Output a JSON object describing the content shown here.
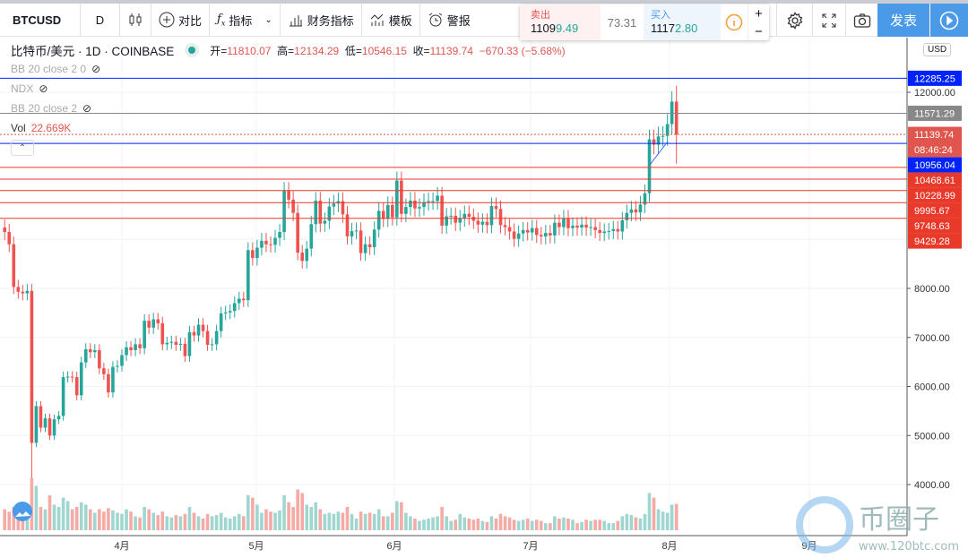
{
  "toolbar": {
    "symbol": "BTCUSD",
    "interval": "D",
    "compare": "对比",
    "indicators": "指标",
    "financials": "财务指标",
    "templates": "模板",
    "alert": "警报",
    "publish": "发表"
  },
  "trade": {
    "sell_label": "卖出",
    "sell_price_a": "1109",
    "sell_price_b": "9.49",
    "spread": "73.31",
    "buy_label": "买入",
    "buy_price_a": "1117",
    "buy_price_b": "2.80"
  },
  "legend": {
    "title": "比特币/美元 · 1D · COINBASE",
    "open_label": "开=",
    "open": "11810.07",
    "high_label": "高=",
    "high": "12134.29",
    "low_label": "低=",
    "low": "10546.15",
    "close_label": "收=",
    "close": "11139.74",
    "change": "−670.33 (−5.68%)",
    "studies": [
      "BB 20 close 2 0",
      "NDX",
      "BB 20 close 2"
    ],
    "vol_label": "Vol",
    "vol_value": "22.669K"
  },
  "axis": {
    "currency": "USD",
    "ticks": [
      "12000.00",
      "8000.00",
      "7000.00",
      "6000.00",
      "5000.00",
      "4000.00"
    ],
    "months": [
      "4月",
      "5月",
      "6月",
      "7月",
      "8月",
      "9月"
    ],
    "countdown": "08:46:24"
  },
  "price_lines": [
    {
      "value": "12285.25",
      "color": "#0022ff",
      "style": "solid"
    },
    {
      "value": "11571.29",
      "color": "#888888",
      "style": "solid"
    },
    {
      "value": "11139.74",
      "color": "#e0564f",
      "style": "dotted"
    },
    {
      "value": "10956.04",
      "color": "#0022ff",
      "style": "solid"
    },
    {
      "value": "10468.61",
      "color": "#e8392b",
      "style": "solid"
    },
    {
      "value": "10228.99",
      "color": "#e8392b",
      "style": "solid"
    },
    {
      "value": "9995.67",
      "color": "#e8392b",
      "style": "solid"
    },
    {
      "value": "9748.63",
      "color": "#e8392b",
      "style": "solid"
    },
    {
      "value": "9429.28",
      "color": "#e8392b",
      "style": "solid"
    }
  ],
  "watermark": {
    "name": "币圈子",
    "url": "www.120btc.com"
  },
  "colors": {
    "up": "#26a69a",
    "down": "#ef5350",
    "accent": "#4a9ae8"
  },
  "chart_data": {
    "type": "candlestick",
    "start_date": "2020-03-06",
    "last_bar": {
      "open": 11810.07,
      "high": 12134.29,
      "low": 10546.15,
      "close": 11139.74
    },
    "closes": [
      9150,
      8900,
      8030,
      7930,
      7900,
      7950,
      4850,
      5600,
      5160,
      5350,
      5000,
      5330,
      5400,
      6190,
      6200,
      6190,
      5820,
      6490,
      6760,
      6700,
      6740,
      6370,
      6250,
      5880,
      6400,
      6420,
      6640,
      6800,
      6740,
      6860,
      6780,
      7340,
      7200,
      7370,
      7290,
      6860,
      6890,
      6910,
      6850,
      6870,
      6620,
      7110,
      7040,
      7260,
      7130,
      6850,
      6860,
      7130,
      7490,
      7510,
      7540,
      7700,
      7790,
      7760,
      8780,
      8620,
      8830,
      8970,
      8900,
      8890,
      9030,
      9150,
      9990,
      9810,
      9540,
      8730,
      8560,
      8810,
      9310,
      9790,
      9320,
      9380,
      9670,
      9730,
      9780,
      9510,
      9060,
      9170,
      9180,
      8720,
      8900,
      8840,
      9200,
      9580,
      9420,
      9700,
      9450,
      10200,
      9520,
      9660,
      9790,
      9630,
      9660,
      9760,
      9780,
      9780,
      9890,
      9280,
      9470,
      9480,
      9340,
      9430,
      9520,
      9460,
      9380,
      9300,
      9360,
      9290,
      9680,
      9620,
      9290,
      9250,
      9160,
      9010,
      9120,
      9190,
      9140,
      9230,
      9090,
      9060,
      9130,
      9080,
      9340,
      9250,
      9430,
      9230,
      9280,
      9240,
      9300,
      9240,
      9250,
      9190,
      9130,
      9160,
      9170,
      9210,
      9160,
      9390,
      9540,
      9610,
      9550,
      9710,
      9940,
      11040,
      10930,
      11100,
      11110,
      11350,
      11810.07,
      11139.74
    ],
    "volumes_k": [
      18,
      16,
      20,
      19,
      17,
      18,
      45,
      38,
      20,
      18,
      30,
      22,
      20,
      28,
      25,
      18,
      20,
      24,
      22,
      18,
      15,
      18,
      16,
      19,
      17,
      15,
      14,
      18,
      16,
      12,
      11,
      20,
      18,
      15,
      13,
      16,
      12,
      11,
      13,
      12,
      14,
      20,
      15,
      12,
      10,
      14,
      12,
      13,
      15,
      11,
      10,
      12,
      14,
      12,
      30,
      28,
      22,
      15,
      18,
      16,
      15,
      17,
      30,
      24,
      20,
      35,
      32,
      22,
      20,
      24,
      18,
      14,
      15,
      14,
      16,
      15,
      20,
      14,
      10,
      16,
      14,
      15,
      14,
      18,
      12,
      12,
      15,
      25,
      24,
      15,
      12,
      10,
      8,
      9,
      10,
      11,
      12,
      20,
      12,
      8,
      9,
      14,
      11,
      10,
      9,
      10,
      8,
      7,
      12,
      10,
      14,
      12,
      11,
      9,
      8,
      9,
      10,
      8,
      9,
      8,
      6,
      6,
      12,
      10,
      11,
      10,
      9,
      6,
      7,
      9,
      8,
      9,
      9,
      8,
      6,
      6,
      8,
      12,
      14,
      13,
      11,
      10,
      14,
      32,
      28,
      18,
      16,
      15,
      22,
      22.669
    ],
    "y_range": [
      3700,
      12600
    ]
  }
}
